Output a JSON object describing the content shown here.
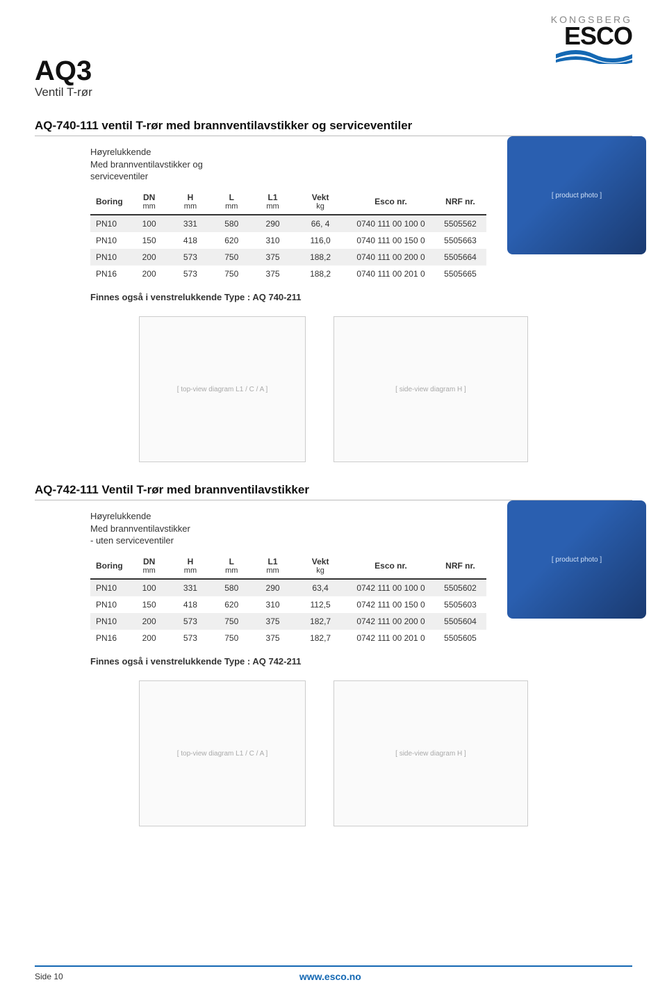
{
  "brand": {
    "top": "KONGSBERG",
    "name": "ESCO",
    "wave_color1": "#1468b3",
    "wave_color2": "#1468b3"
  },
  "doc": {
    "code": "AQ3",
    "subtitle": "Ventil T-rør"
  },
  "section1": {
    "title": "AQ-740-111 ventil T-rør med brannventilavstikker og serviceventiler",
    "desc_lines": [
      "Høyrelukkende",
      "Med brannventilavstikker og",
      "serviceventiler"
    ],
    "columns": [
      {
        "label": "Boring",
        "unit": ""
      },
      {
        "label": "DN",
        "unit": "mm"
      },
      {
        "label": "H",
        "unit": "mm"
      },
      {
        "label": "L",
        "unit": "mm"
      },
      {
        "label": "L1",
        "unit": "mm"
      },
      {
        "label": "Vekt",
        "unit": "kg"
      },
      {
        "label": "Esco nr.",
        "unit": ""
      },
      {
        "label": "NRF nr.",
        "unit": ""
      }
    ],
    "rows": [
      {
        "shade": true,
        "cells": [
          "PN10",
          "100",
          "331",
          "580",
          "290",
          "66, 4",
          "0740 111 00 100 0",
          "5505562"
        ]
      },
      {
        "shade": false,
        "cells": [
          "PN10",
          "150",
          "418",
          "620",
          "310",
          "116,0",
          "0740 111 00 150 0",
          "5505663"
        ]
      },
      {
        "shade": true,
        "cells": [
          "PN10",
          "200",
          "573",
          "750",
          "375",
          "188,2",
          "0740 111 00 200 0",
          "5505664"
        ]
      },
      {
        "shade": false,
        "cells": [
          "PN16",
          "200",
          "573",
          "750",
          "375",
          "188,2",
          "0740 111 00 201 0",
          "5505665"
        ]
      }
    ],
    "note": "Finnes også i venstrelukkende Type :  AQ 740-211",
    "diagram_top_label": "[ top-view diagram L1 / C / A ]",
    "diagram_side_label": "[ side-view diagram H ]",
    "photo_label": "[ product photo ]"
  },
  "section2": {
    "title": "AQ-742-111 Ventil T-rør med brannventilavstikker",
    "desc_lines": [
      "Høyrelukkende",
      "Med brannventilavstikker",
      "- uten serviceventiler"
    ],
    "columns": [
      {
        "label": "Boring",
        "unit": ""
      },
      {
        "label": "DN",
        "unit": "mm"
      },
      {
        "label": "H",
        "unit": "mm"
      },
      {
        "label": "L",
        "unit": "mm"
      },
      {
        "label": "L1",
        "unit": "mm"
      },
      {
        "label": "Vekt",
        "unit": "kg"
      },
      {
        "label": "Esco nr.",
        "unit": ""
      },
      {
        "label": "NRF nr.",
        "unit": ""
      }
    ],
    "rows": [
      {
        "shade": true,
        "cells": [
          "PN10",
          "100",
          "331",
          "580",
          "290",
          "63,4",
          "0742 111 00 100 0",
          "5505602"
        ]
      },
      {
        "shade": false,
        "cells": [
          "PN10",
          "150",
          "418",
          "620",
          "310",
          "112,5",
          "0742 111 00 150 0",
          "5505603"
        ]
      },
      {
        "shade": true,
        "cells": [
          "PN10",
          "200",
          "573",
          "750",
          "375",
          "182,7",
          "0742 111 00 200 0",
          "5505604"
        ]
      },
      {
        "shade": false,
        "cells": [
          "PN16",
          "200",
          "573",
          "750",
          "375",
          "182,7",
          "0742 111 00 201 0",
          "5505605"
        ]
      }
    ],
    "note": "Finnes også i venstrelukkende Type :  AQ 742-211",
    "diagram_top_label": "[ top-view diagram L1 / C / A ]",
    "diagram_side_label": "[ side-view diagram H ]",
    "photo_label": "[ product photo ]"
  },
  "footer": {
    "page": "Side 10",
    "url": "www.esco.no"
  },
  "style": {
    "shade_bg": "#efefef",
    "header_border": "#333333",
    "accent": "#1468b3"
  }
}
